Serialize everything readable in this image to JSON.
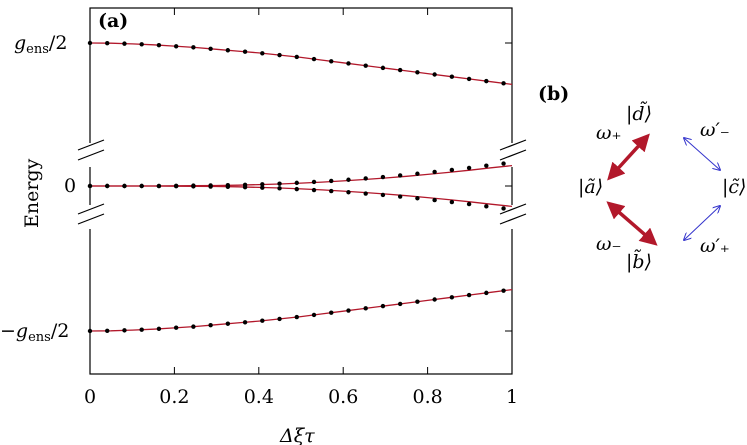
{
  "panel_a": {
    "label": "(a)",
    "xlabel": "Δξτ",
    "ylabel": "Energy",
    "xticks": [
      "0",
      "0.2",
      "0.4",
      "0.6",
      "0.8",
      "1"
    ],
    "yticks": [
      "g_ens/2",
      "0",
      "−g_ens/2"
    ]
  },
  "panel_b": {
    "label": "(b)",
    "states": {
      "a": "|ã⟩",
      "b": "|b̃⟩",
      "c": "|c̃⟩",
      "d": "|d̃⟩"
    },
    "rates": {
      "w_plus": "ω₊",
      "w_minus": "ω₋",
      "w_minus_prime": "ω′₋",
      "w_plus_prime": "ω′₊"
    },
    "colors": {
      "strong": "#b2182b",
      "weak": "#3333cc"
    }
  },
  "chart_data": {
    "type": "line",
    "xlabel": "Δξτ",
    "ylabel": "Energy",
    "xlim": [
      0,
      1
    ],
    "broken_y_axis": true,
    "yticks": [
      "−g_ens/2",
      "0",
      "g_ens/2"
    ],
    "line_color": "#b2182b",
    "dot_color": "#000000",
    "x": [
      0,
      0.05,
      0.1,
      0.15,
      0.2,
      0.25,
      0.3,
      0.35,
      0.4,
      0.45,
      0.5,
      0.55,
      0.6,
      0.65,
      0.7,
      0.75,
      0.8,
      0.85,
      0.9,
      0.95,
      1.0
    ],
    "series": [
      {
        "segment": "top",
        "y_offset_from_g_ens_over_2": [
          0,
          -0.002,
          -0.01,
          -0.02,
          -0.035,
          -0.05,
          -0.07,
          -0.09,
          -0.11,
          -0.135,
          -0.16,
          -0.19,
          -0.22,
          -0.25,
          -0.28,
          -0.31,
          -0.34,
          -0.37,
          -0.4,
          -0.43,
          -0.46
        ]
      },
      {
        "segment": "middle_upper",
        "y": [
          0,
          0,
          0,
          0,
          0.001,
          0.002,
          0.003,
          0.005,
          0.008,
          0.012,
          0.017,
          0.023,
          0.03,
          0.038,
          0.047,
          0.057,
          0.068,
          0.08,
          0.093,
          0.107,
          0.12
        ]
      },
      {
        "segment": "middle_lower",
        "y": [
          0,
          0,
          0,
          0,
          -0.001,
          -0.002,
          -0.003,
          -0.005,
          -0.008,
          -0.012,
          -0.017,
          -0.023,
          -0.03,
          -0.038,
          -0.047,
          -0.057,
          -0.068,
          -0.08,
          -0.093,
          -0.107,
          -0.12
        ]
      },
      {
        "segment": "bottom",
        "y_offset_from_minus_g_ens_over_2": [
          0,
          0.002,
          0.01,
          0.02,
          0.035,
          0.05,
          0.07,
          0.09,
          0.11,
          0.135,
          0.16,
          0.19,
          0.22,
          0.25,
          0.28,
          0.31,
          0.34,
          0.37,
          0.4,
          0.43,
          0.46
        ]
      }
    ]
  }
}
